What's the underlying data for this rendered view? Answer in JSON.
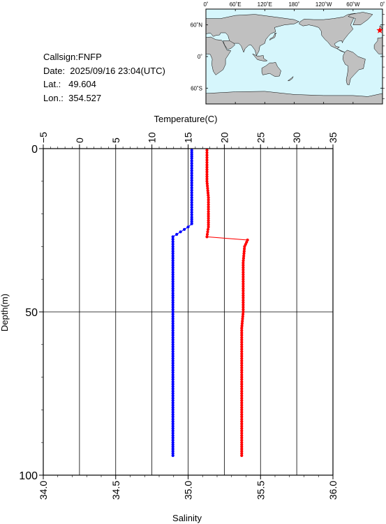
{
  "info": {
    "callsign": "Callsign:FNFP",
    "date": "Date:  2025/09/16 23:04(UTC)",
    "lat": "Lat.:   49.604",
    "lon": "Lon.:  354.527"
  },
  "map": {
    "lon_labels": [
      "0˚",
      "60˚E",
      "120˚E",
      "180˚",
      "120˚W",
      "60˚W",
      "0˚"
    ],
    "lat_labels": [
      "60˚N",
      "0˚",
      "60˚S"
    ],
    "ocean_color": "#d6f6fc",
    "land_color": "#c0c0c0",
    "marker_color": "#ff0000",
    "marker": {
      "lat": 49.604,
      "lon": 354.527
    }
  },
  "chart_data": {
    "type": "line",
    "top_axis_label": "Temperature(C)",
    "bottom_axis_label": "Salinity",
    "left_axis_label": "Depth(m)",
    "temperature_ticks": [
      "−5",
      "0",
      "5",
      "10",
      "15",
      "20",
      "25",
      "30",
      "35"
    ],
    "salinity_ticks": [
      "34.0",
      "34.5",
      "35.0",
      "35.5",
      "36.0"
    ],
    "depth_ticks": [
      "0",
      "50",
      "100"
    ],
    "temperature_range": [
      -5,
      35
    ],
    "salinity_range": [
      34.0,
      36.0
    ],
    "depth_range": [
      0,
      100
    ],
    "grid": true,
    "series": [
      {
        "color": "#0000ff",
        "x_axis": "temperature",
        "points": [
          [
            15.5,
            0.5
          ],
          [
            15.5,
            3
          ],
          [
            15.5,
            6
          ],
          [
            15.5,
            9
          ],
          [
            15.5,
            12
          ],
          [
            15.5,
            15
          ],
          [
            15.5,
            18
          ],
          [
            15.5,
            21
          ],
          [
            15.5,
            23
          ],
          [
            15.0,
            24
          ],
          [
            12.9,
            27
          ],
          [
            12.9,
            30
          ],
          [
            12.9,
            35
          ],
          [
            12.9,
            40
          ],
          [
            12.9,
            45
          ],
          [
            12.9,
            50
          ],
          [
            12.9,
            55
          ],
          [
            12.9,
            60
          ],
          [
            12.9,
            65
          ],
          [
            12.9,
            70
          ],
          [
            12.9,
            75
          ],
          [
            12.9,
            80
          ],
          [
            12.9,
            85
          ],
          [
            12.9,
            90
          ],
          [
            12.9,
            94
          ]
        ]
      },
      {
        "color": "#ff0000",
        "x_axis": "salinity",
        "points": [
          [
            35.13,
            0.5
          ],
          [
            35.13,
            5
          ],
          [
            35.13,
            10
          ],
          [
            35.14,
            15
          ],
          [
            35.14,
            20
          ],
          [
            35.14,
            24
          ],
          [
            35.13,
            27
          ],
          [
            35.41,
            28
          ],
          [
            35.39,
            30
          ],
          [
            35.38,
            35
          ],
          [
            35.38,
            40
          ],
          [
            35.38,
            45
          ],
          [
            35.38,
            50
          ],
          [
            35.37,
            55
          ],
          [
            35.37,
            60
          ],
          [
            35.37,
            65
          ],
          [
            35.37,
            70
          ],
          [
            35.37,
            75
          ],
          [
            35.37,
            80
          ],
          [
            35.37,
            85
          ],
          [
            35.37,
            90
          ],
          [
            35.37,
            94
          ]
        ]
      }
    ]
  }
}
